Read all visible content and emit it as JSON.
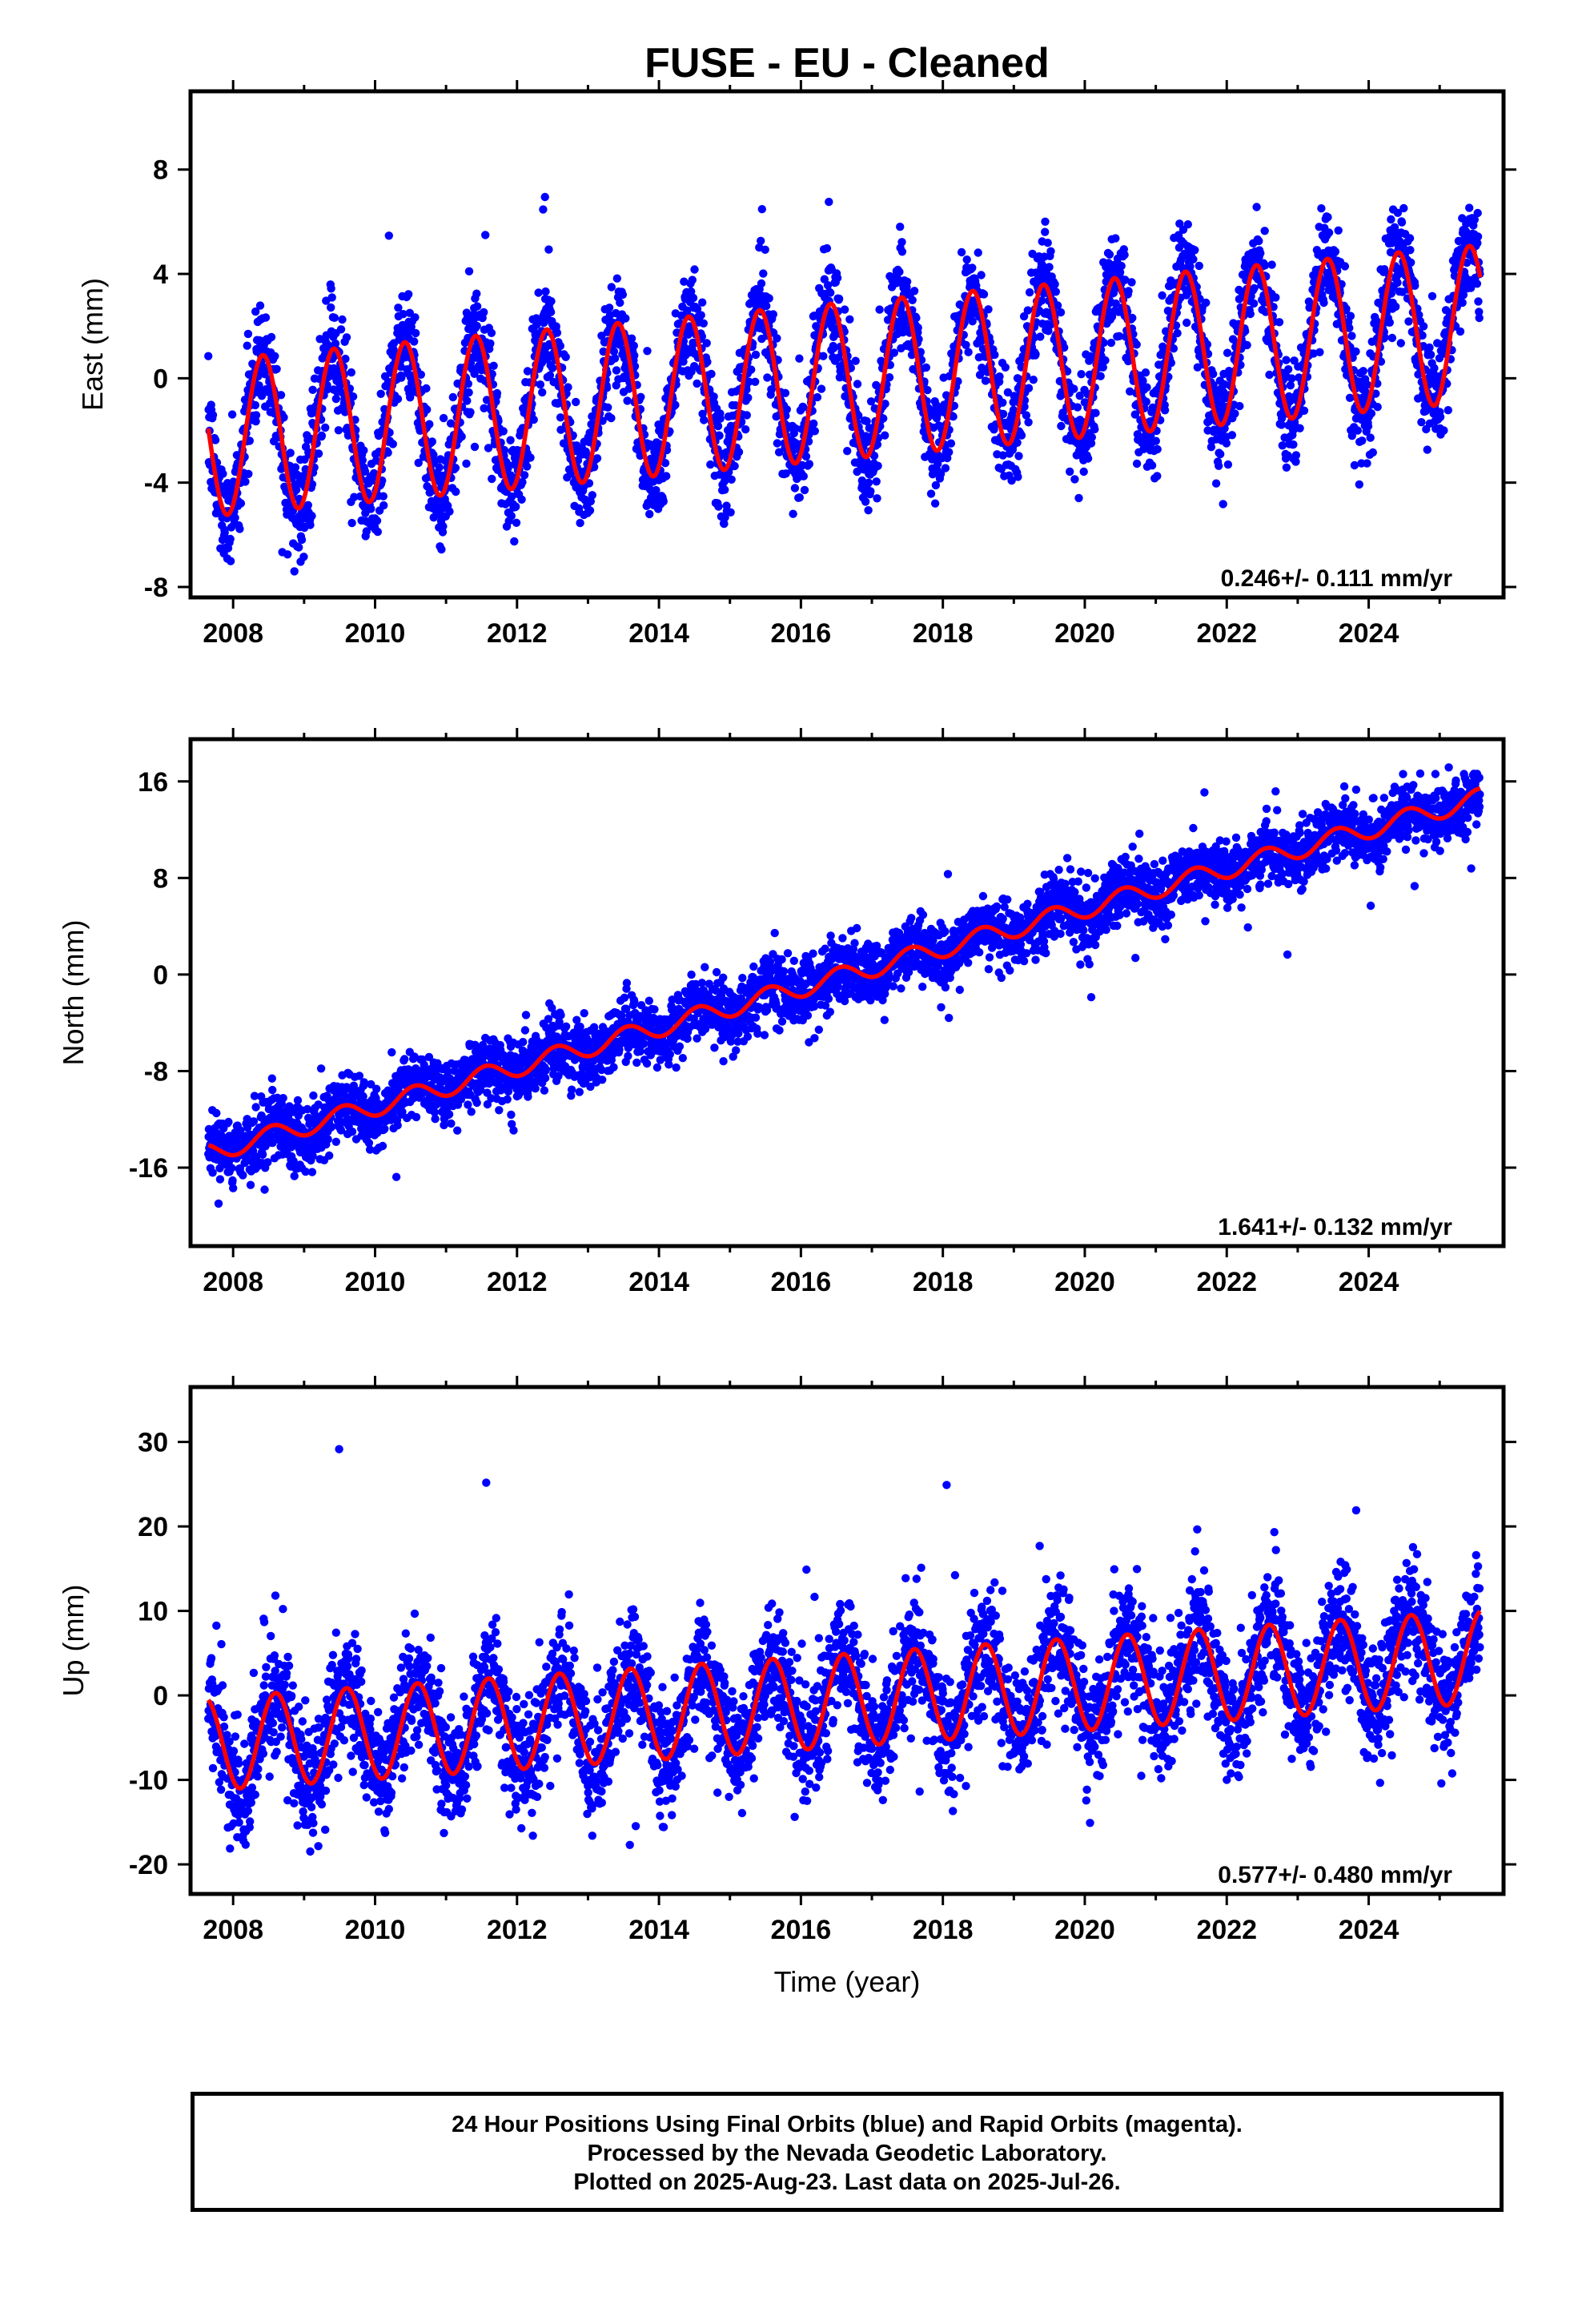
{
  "title": "FUSE  - EU - Cleaned",
  "footer": {
    "lines": [
      "24 Hour Positions Using Final Orbits (blue) and Rapid Orbits (magenta).",
      "Processed by the Nevada Geodetic Laboratory.",
      "Plotted on 2025-Aug-23. Last data on 2025-Jul-26."
    ]
  },
  "colors": {
    "points": "#0000ff",
    "model": "#ff0000",
    "frame": "#000000"
  },
  "chart_data": [
    {
      "type": "scatter",
      "title": "FUSE  - EU - Cleaned",
      "xlabel": "",
      "ylabel": "East (mm)",
      "xlim": [
        2007.4,
        2025.9
      ],
      "ylim": [
        -8.4,
        11.0
      ],
      "xticks": [
        "2008",
        "2010",
        "2012",
        "2014",
        "2016",
        "2018",
        "2020",
        "2022",
        "2024"
      ],
      "yticks": [
        "8",
        "4",
        "0",
        "-4",
        "-8"
      ],
      "ytick_values": [
        8,
        4,
        0,
        -4,
        -8
      ],
      "rate_label": "0.246+/- 0.111 mm/yr",
      "data_span": [
        2007.65,
        2025.57
      ],
      "model": {
        "offset": -0.1,
        "trend": 0.246,
        "seasonal_amplitude": 3.0,
        "peak_phase": 0.42
      },
      "scatter_sd": 1.0,
      "grid": false,
      "legend": "none"
    },
    {
      "type": "scatter",
      "xlabel": "",
      "ylabel": "North (mm)",
      "xlim": [
        2007.4,
        2025.9
      ],
      "ylim": [
        -22.5,
        19.5
      ],
      "xticks": [
        "2008",
        "2010",
        "2012",
        "2014",
        "2016",
        "2018",
        "2020",
        "2022",
        "2024"
      ],
      "yticks": [
        "16",
        "8",
        "0",
        "-8",
        "-16"
      ],
      "ytick_values": [
        16,
        8,
        0,
        -8,
        -16
      ],
      "rate_label": "1.641+/- 0.132 mm/yr",
      "data_span": [
        2007.65,
        2025.57
      ],
      "model": {
        "offset": -0.1,
        "trend": 1.641,
        "seasonal_amplitude": 0.8,
        "peak_phase": 0.55
      },
      "scatter_sd": 1.3,
      "grid": false,
      "legend": "none"
    },
    {
      "type": "scatter",
      "xlabel": "Time (year)",
      "ylabel": "Up (mm)",
      "xlim": [
        2007.4,
        2025.9
      ],
      "ylim": [
        -23.5,
        36.5
      ],
      "xticks": [
        "2008",
        "2010",
        "2012",
        "2014",
        "2016",
        "2018",
        "2020",
        "2022",
        "2024"
      ],
      "yticks": [
        "30",
        "20",
        "10",
        "0",
        "-10",
        "-20"
      ],
      "ytick_values": [
        30,
        20,
        10,
        0,
        -10,
        -20
      ],
      "rate_label": "0.577+/- 0.480 mm/yr",
      "data_span": [
        2007.65,
        2025.57
      ],
      "model": {
        "offset": -0.6,
        "trend": 0.577,
        "seasonal_amplitude": 5.5,
        "peak_phase": 0.6
      },
      "scatter_sd": 3.5,
      "grid": false,
      "legend": "none"
    }
  ]
}
